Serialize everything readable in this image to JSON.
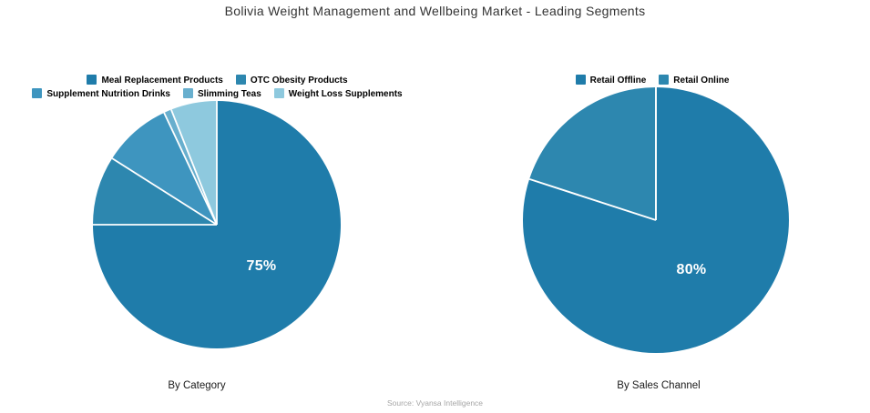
{
  "title": "Bolivia Weight Management and Wellbeing Market - Leading Segments",
  "source": "Source: Vyansa Intelligence",
  "chart_data": [
    {
      "type": "pie",
      "title": "By Category",
      "labels": [
        "Meal Replacement Products",
        "OTC Obesity Products",
        "Supplement Nutrition Drinks",
        "Slimming Teas",
        "Weight Loss Supplements"
      ],
      "values": [
        75,
        9,
        9,
        1,
        6
      ],
      "colors": [
        "#1f7caa",
        "#2d87af",
        "#3e95bf",
        "#68afce",
        "#8ec9de"
      ],
      "data_label": "75%",
      "data_label_series": "Meal Replacement Products",
      "legend_rows": [
        [
          0,
          1
        ],
        [
          2,
          3,
          4
        ]
      ],
      "legend_position": "top",
      "start_angle_deg": 0,
      "direction": "clockwise"
    },
    {
      "type": "pie",
      "title": "By Sales Channel",
      "labels": [
        "Retail Offline",
        "Retail Online"
      ],
      "values": [
        80,
        20
      ],
      "colors": [
        "#1f7caa",
        "#2d87af"
      ],
      "data_label": "80%",
      "data_label_series": "Retail Offline",
      "legend_rows": [
        [
          0,
          1
        ]
      ],
      "legend_position": "top",
      "start_angle_deg": 0,
      "direction": "clockwise"
    }
  ]
}
